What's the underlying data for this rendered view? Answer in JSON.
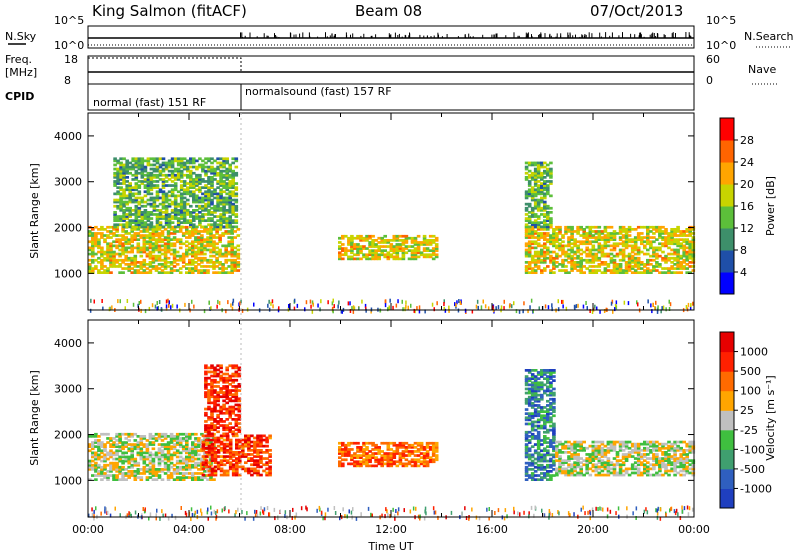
{
  "header": {
    "station": "King Salmon (fitACF)",
    "beam": "Beam 08",
    "date": "07/Oct/2013"
  },
  "strips": {
    "nsky_label": "N.Sky",
    "nsky_ticks": [
      "10^5",
      "10^0"
    ],
    "nsearch_label": "N.Search",
    "nsearch_ticks": [
      "10^5",
      "10^0"
    ],
    "freq_label_1": "Freq.",
    "freq_label_2": "[MHz]",
    "freq_ticks": [
      "18",
      "8"
    ],
    "nave_label": "Nave",
    "nave_ticks": [
      "60",
      "0"
    ],
    "cpid_label": "CPID",
    "cpid_segments": [
      "normal (fast) 151 RF",
      "normalsound (fast) 157 RF"
    ]
  },
  "chart_data": [
    {
      "type": "heatmap",
      "quantity": "Power",
      "ylabel": "Slant Range [km]",
      "xlabel": "Time UT",
      "ylim": [
        200,
        4500
      ],
      "yticks": [
        "1000",
        "2000",
        "3000",
        "4000"
      ],
      "xticks": [
        "00:00",
        "04:00",
        "08:00",
        "12:00",
        "16:00",
        "20:00",
        "00:00"
      ],
      "colorbar_label": "Power [dB]",
      "colorbar_ticks": [
        "4",
        "8",
        "12",
        "16",
        "20",
        "24",
        "28"
      ],
      "colors": [
        "#0000ff",
        "#1f4fa8",
        "#3d8f6a",
        "#5cbf3a",
        "#c8d400",
        "#ffa500",
        "#ff6400",
        "#ff0000"
      ],
      "echo_regions": [
        {
          "t0": 0.0,
          "t1": 5.9,
          "r0": 1000,
          "r1": 2000,
          "level": 0.6
        },
        {
          "t0": 1.0,
          "t1": 5.9,
          "r0": 2000,
          "r1": 3500,
          "level": 0.4
        },
        {
          "t0": 9.9,
          "t1": 13.8,
          "r0": 1300,
          "r1": 1800,
          "level": 0.6
        },
        {
          "t0": 17.3,
          "t1": 24.0,
          "r0": 1000,
          "r1": 2000,
          "level": 0.6
        },
        {
          "t0": 17.3,
          "t1": 18.3,
          "r0": 2000,
          "r1": 3400,
          "level": 0.4
        }
      ]
    },
    {
      "type": "heatmap",
      "quantity": "Velocity",
      "ylabel": "Slant Range [km]",
      "xlabel": "Time UT",
      "ylim": [
        200,
        4500
      ],
      "yticks": [
        "1000",
        "2000",
        "3000",
        "4000"
      ],
      "xticks": [
        "00:00",
        "04:00",
        "08:00",
        "12:00",
        "16:00",
        "20:00",
        "00:00"
      ],
      "colorbar_label": "Velocity [m s⁻¹]",
      "colorbar_ticks": [
        "1000",
        "500",
        "100",
        "25",
        "-25",
        "-100",
        "-500",
        "-1000"
      ],
      "colors": [
        "#1f3fbf",
        "#2f5fbf",
        "#3f9f6f",
        "#3fbf3f",
        "#c0c0c0",
        "#ffa500",
        "#ff6a00",
        "#ff2000",
        "#e60000"
      ],
      "echo_regions": [
        {
          "t0": 0.0,
          "t1": 5.0,
          "r0": 1000,
          "r1": 2000,
          "level": 0.5
        },
        {
          "t0": 4.5,
          "t1": 7.2,
          "r0": 1100,
          "r1": 2000,
          "level": 0.85
        },
        {
          "t0": 4.6,
          "t1": 6.0,
          "r0": 2000,
          "r1": 3500,
          "level": 0.9
        },
        {
          "t0": 9.9,
          "t1": 13.8,
          "r0": 1300,
          "r1": 1800,
          "level": 0.75
        },
        {
          "t0": 17.3,
          "t1": 18.5,
          "r0": 1000,
          "r1": 3400,
          "level": 0.2
        },
        {
          "t0": 18.5,
          "t1": 24.0,
          "r0": 1100,
          "r1": 1850,
          "level": 0.5
        }
      ]
    }
  ]
}
